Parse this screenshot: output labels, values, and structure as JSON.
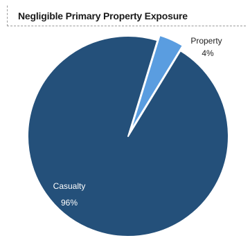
{
  "title": "Negligible Primary Property Exposure",
  "colors": {
    "casualty": "#24507a",
    "property": "#5a9de0",
    "separator": "#ffffff",
    "label_dark": "#222222",
    "label_light": "#ffffff"
  },
  "chart_data": {
    "type": "pie",
    "title": "Negligible Primary Property Exposure",
    "slices": [
      {
        "name": "Casualty",
        "value": 96,
        "value_label": "96%"
      },
      {
        "name": "Property",
        "value": 4,
        "value_label": "4%"
      }
    ],
    "legend": "none"
  }
}
